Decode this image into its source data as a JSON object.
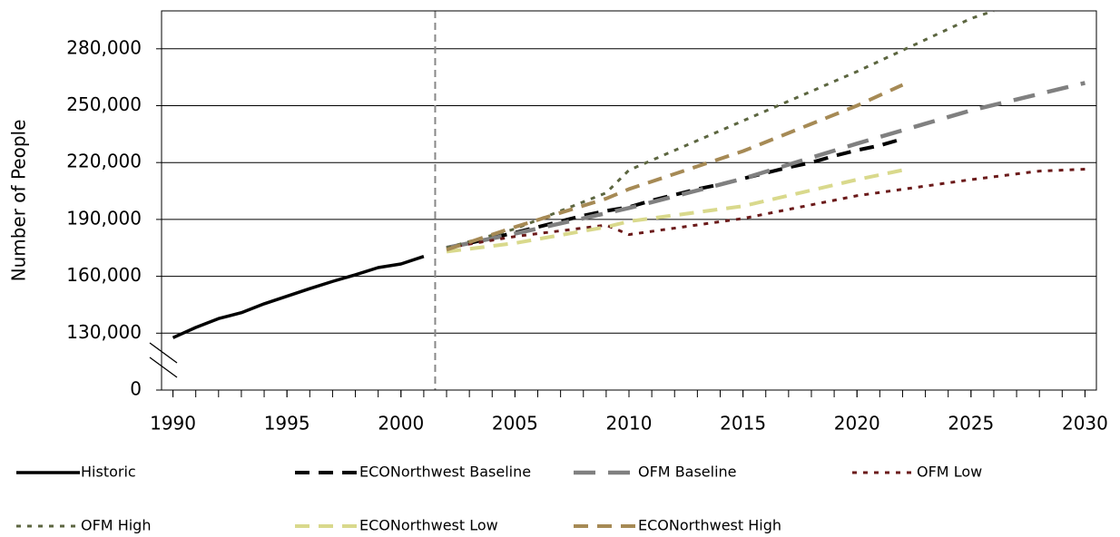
{
  "chart_data": {
    "type": "line",
    "y_label": "Number of People",
    "xlim": [
      1989.5,
      2030.5
    ],
    "xticks": [
      1990,
      1995,
      2000,
      2005,
      2010,
      2015,
      2020,
      2025,
      2030
    ],
    "xminor_step": 1,
    "ylim": [
      0,
      300000
    ],
    "y_break": [
      0,
      100000
    ],
    "yticks": [
      0,
      {
        "value": 130000,
        "label": "130,000"
      },
      {
        "value": 160000,
        "label": "160,000"
      },
      {
        "value": 190000,
        "label": "190,000"
      },
      {
        "value": 220000,
        "label": "220,000"
      },
      {
        "value": 250000,
        "label": "250,000"
      },
      {
        "value": 280000,
        "label": "280,000"
      }
    ],
    "grid": true,
    "vline": 2001.5,
    "series": [
      {
        "name": "Historic",
        "color": "#000000",
        "style": "solid",
        "x": [
          1990,
          1991,
          1992,
          1993,
          1994,
          1995,
          1996,
          1997,
          1998,
          1999,
          2000,
          2001
        ],
        "values": [
          127600,
          133000,
          137700,
          140800,
          145500,
          149500,
          153500,
          157300,
          160800,
          164600,
          166500,
          170500
        ]
      },
      {
        "name": "ECONorthwest Baseline",
        "color": "#000000",
        "style": "dashed",
        "x": [
          2002,
          2003,
          2004,
          2005,
          2006,
          2007,
          2008,
          2009,
          2010,
          2011,
          2012,
          2013,
          2014,
          2015,
          2016,
          2017,
          2018,
          2019,
          2020,
          2021,
          2022
        ],
        "values": [
          175000,
          177500,
          180300,
          183000,
          186000,
          189000,
          192000,
          194500,
          196500,
          200000,
          203000,
          206000,
          208500,
          211500,
          214500,
          217500,
          220000,
          223500,
          226500,
          229000,
          232500
        ]
      },
      {
        "name": "OFM Baseline",
        "color": "#808080",
        "style": "longdash",
        "x": [
          2002,
          2005,
          2010,
          2015,
          2020,
          2025,
          2030
        ],
        "values": [
          175000,
          182500,
          196000,
          211500,
          230000,
          247500,
          262000
        ]
      },
      {
        "name": "OFM Low",
        "color": "#6b1a1a",
        "style": "dotted",
        "x": [
          2002,
          2005,
          2009,
          2010,
          2015,
          2020,
          2025,
          2028,
          2030
        ],
        "values": [
          175000,
          181000,
          187000,
          182000,
          190500,
          202500,
          211000,
          215500,
          216500
        ]
      },
      {
        "name": "OFM High",
        "color": "#5c6640",
        "style": "dotted",
        "x": [
          2002,
          2005,
          2009,
          2010,
          2015,
          2020,
          2025,
          2026
        ],
        "values": [
          175000,
          185000,
          204000,
          216000,
          242000,
          268000,
          296000,
          300000
        ]
      },
      {
        "name": "ECONorthwest Low",
        "color": "#d9d98c",
        "style": "dashed",
        "x": [
          2002,
          2005,
          2009,
          2010,
          2015,
          2020,
          2022
        ],
        "values": [
          173000,
          177500,
          186000,
          189000,
          197000,
          211000,
          216000
        ]
      },
      {
        "name": "ECONorthwest High",
        "color": "#a68a55",
        "style": "dashed",
        "x": [
          2002,
          2005,
          2009,
          2010,
          2015,
          2020,
          2022
        ],
        "values": [
          174000,
          186000,
          201000,
          206000,
          226000,
          250000,
          261000
        ]
      }
    ]
  }
}
